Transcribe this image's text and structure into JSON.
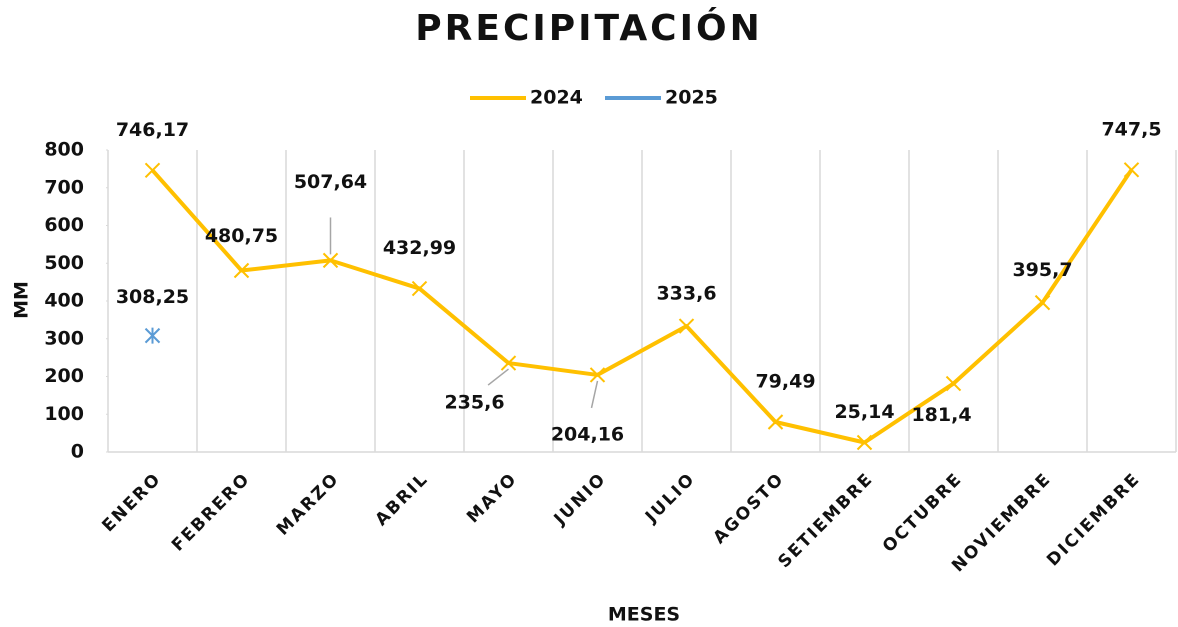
{
  "chart_data": {
    "type": "line",
    "title": "PRECIPITACIÓN",
    "x_label": "MESES",
    "y_label": "MM",
    "categories": [
      "ENERO",
      "FEBRERO",
      "MARZO",
      "ABRIL",
      "MAYO",
      "JUNIO",
      "JULIO",
      "AGOSTO",
      "SETIEMBRE",
      "OCTUBRE",
      "NOVIEMBRE",
      "DICIEMBRE"
    ],
    "series": [
      {
        "name": "2024",
        "color": "#ffc000",
        "values": [
          746.17,
          480.75,
          507.64,
          432.99,
          235.6,
          204.16,
          333.6,
          79.49,
          25.14,
          181.4,
          395.7,
          747.5
        ],
        "value_labels": [
          "746,17",
          "480,75",
          "507,64",
          "432,99",
          "235,6",
          "204,16",
          "333,6",
          "79,49",
          "25,14",
          "181,4",
          "395,7",
          "747,5"
        ]
      },
      {
        "name": "2025",
        "color": "#5b9bd5",
        "values": [
          308.25,
          null,
          null,
          null,
          null,
          null,
          null,
          null,
          null,
          null,
          null,
          null
        ],
        "value_labels": [
          "308,25",
          null,
          null,
          null,
          null,
          null,
          null,
          null,
          null,
          null,
          null,
          null
        ]
      }
    ],
    "ylim": [
      0,
      800
    ],
    "yticks": [
      0,
      100,
      200,
      300,
      400,
      500,
      600,
      700,
      800
    ],
    "legend": "top"
  }
}
